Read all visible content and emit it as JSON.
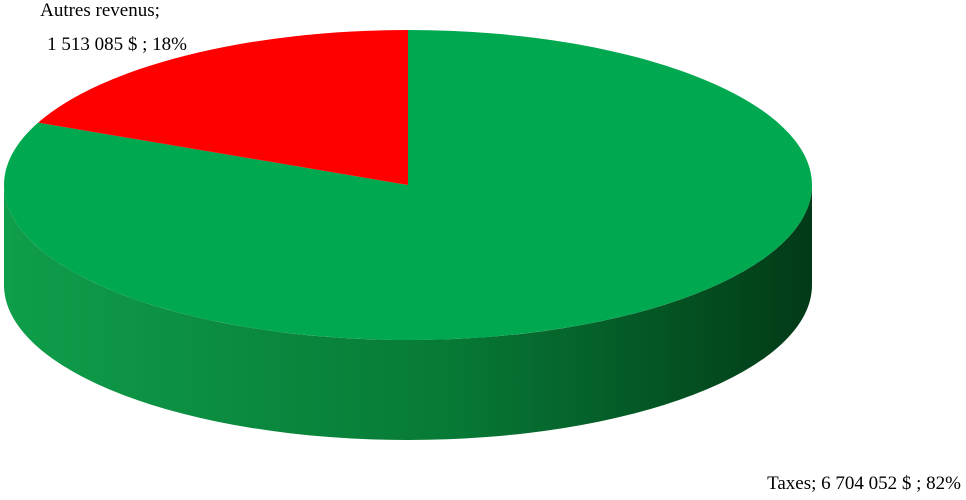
{
  "chart_data": {
    "type": "pie",
    "style": "3d",
    "start_angle": "12 o'clock",
    "direction": "clockwise",
    "slices": [
      {
        "name": "Taxes",
        "value": 6704052,
        "value_text": "6 704 052  $",
        "percent_text": "82%",
        "color": "#00A84F",
        "label_line1": "Taxes;  6 704 052  $ ; 82%",
        "label_line2": ""
      },
      {
        "name": "Autres revenus",
        "value": 1513085,
        "value_text": "1 513 085  $",
        "percent_text": "18%",
        "color": "#FF0000",
        "label_line1": "Autres revenus;",
        "label_line2": "1 513 085  $ ; 18%"
      }
    ],
    "side_colors": {
      "light": "#0F9E4A",
      "mid": "#077A36",
      "dark": "#023A17"
    }
  }
}
